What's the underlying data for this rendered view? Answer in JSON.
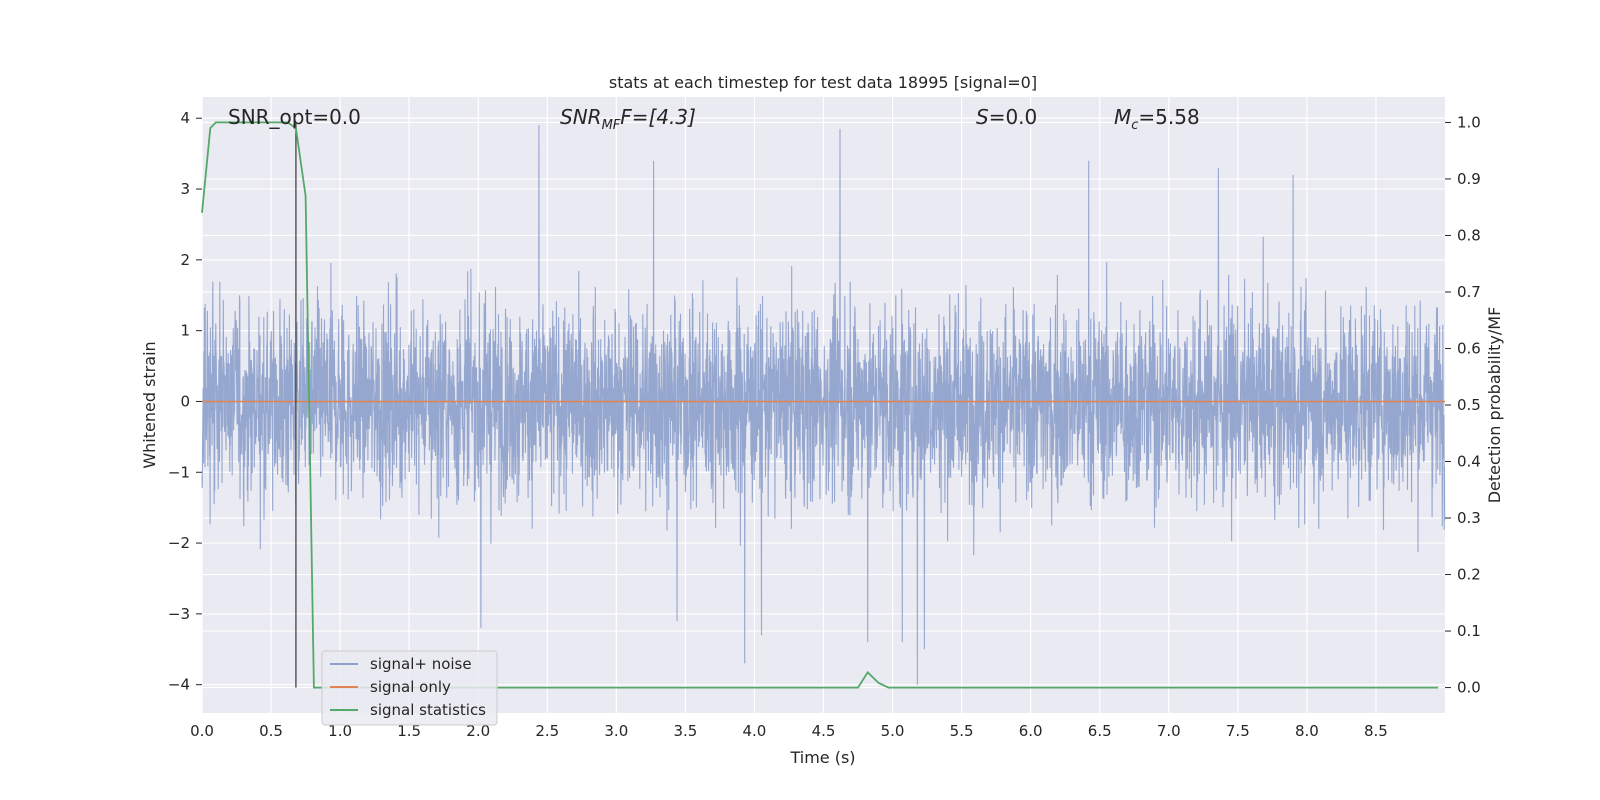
{
  "chart_data": {
    "type": "line",
    "title": "stats at each timestep for test data 18995 [signal=0]",
    "xlabel": "Time (s)",
    "ylabel_left": "Whitened strain",
    "ylabel_right": "Detection probability/MF",
    "xlim": [
      0.0,
      9.0
    ],
    "ylim_left": [
      -4.4,
      4.3
    ],
    "ylim_right": [
      -0.045,
      1.045
    ],
    "grid": true,
    "legend_location": "lower-left",
    "x_ticks": [
      "0.0",
      "0.5",
      "1.0",
      "1.5",
      "2.0",
      "2.5",
      "3.0",
      "3.5",
      "4.0",
      "4.5",
      "5.0",
      "5.5",
      "6.0",
      "6.5",
      "7.0",
      "7.5",
      "8.0",
      "8.5"
    ],
    "y_ticks_left": [
      "4",
      "3",
      "2",
      "1",
      "0",
      "−1",
      "−2",
      "−3",
      "−4"
    ],
    "y_ticks_right": [
      "1.0",
      "0.9",
      "0.8",
      "0.7",
      "0.6",
      "0.5",
      "0.4",
      "0.3",
      "0.2",
      "0.1",
      "0.0"
    ],
    "annotations": {
      "snr_opt": "SNR_opt=0.0",
      "snr_mf_main": "SNR",
      "snr_mf_sub": "MF",
      "snr_mf_rest": "F=[4.3]",
      "s_main": "S",
      "s_rest": "=0.0",
      "mc_main": "M",
      "mc_sub": "c",
      "mc_rest": "=5.58"
    },
    "vertical_marker_x": 0.68,
    "series": [
      {
        "name": "signal+ noise",
        "color": "#8da0cb",
        "kind": "noise",
        "samples_per_second": 512,
        "typical_envelope": [
          -1.8,
          1.9
        ],
        "extreme_peaks": [
          [
            2.44,
            3.9
          ],
          [
            4.62,
            3.85
          ],
          [
            3.27,
            3.4
          ],
          [
            6.42,
            3.4
          ],
          [
            7.36,
            3.3
          ],
          [
            7.9,
            3.2
          ],
          [
            3.93,
            -3.7
          ],
          [
            4.05,
            -3.3
          ],
          [
            4.82,
            -3.4
          ],
          [
            5.07,
            -3.4
          ],
          [
            5.18,
            -4.0
          ],
          [
            5.23,
            -3.5
          ],
          [
            2.02,
            -3.2
          ],
          [
            3.44,
            -3.1
          ]
        ]
      },
      {
        "name": "signal only",
        "color": "#dd8452",
        "x": [
          0.0,
          9.0
        ],
        "y": [
          0.0,
          0.0
        ]
      },
      {
        "name": "signal statistics",
        "color": "#55a868",
        "axis": "right",
        "x": [
          0.0,
          0.06,
          0.1,
          0.15,
          0.3,
          0.5,
          0.62,
          0.68,
          0.75,
          0.81,
          1.0,
          2.0,
          3.0,
          4.0,
          4.5,
          4.75,
          4.82,
          4.9,
          4.97,
          5.2,
          6.0,
          7.0,
          8.0,
          8.95
        ],
        "y": [
          0.84,
          0.99,
          1.0,
          1.0,
          1.0,
          1.0,
          1.0,
          0.99,
          0.87,
          0.0,
          0.0,
          0.0,
          0.0,
          0.0,
          0.0,
          0.0,
          0.027,
          0.008,
          0.0,
          0.0,
          0.0,
          0.0,
          0.0,
          0.0
        ]
      }
    ]
  }
}
